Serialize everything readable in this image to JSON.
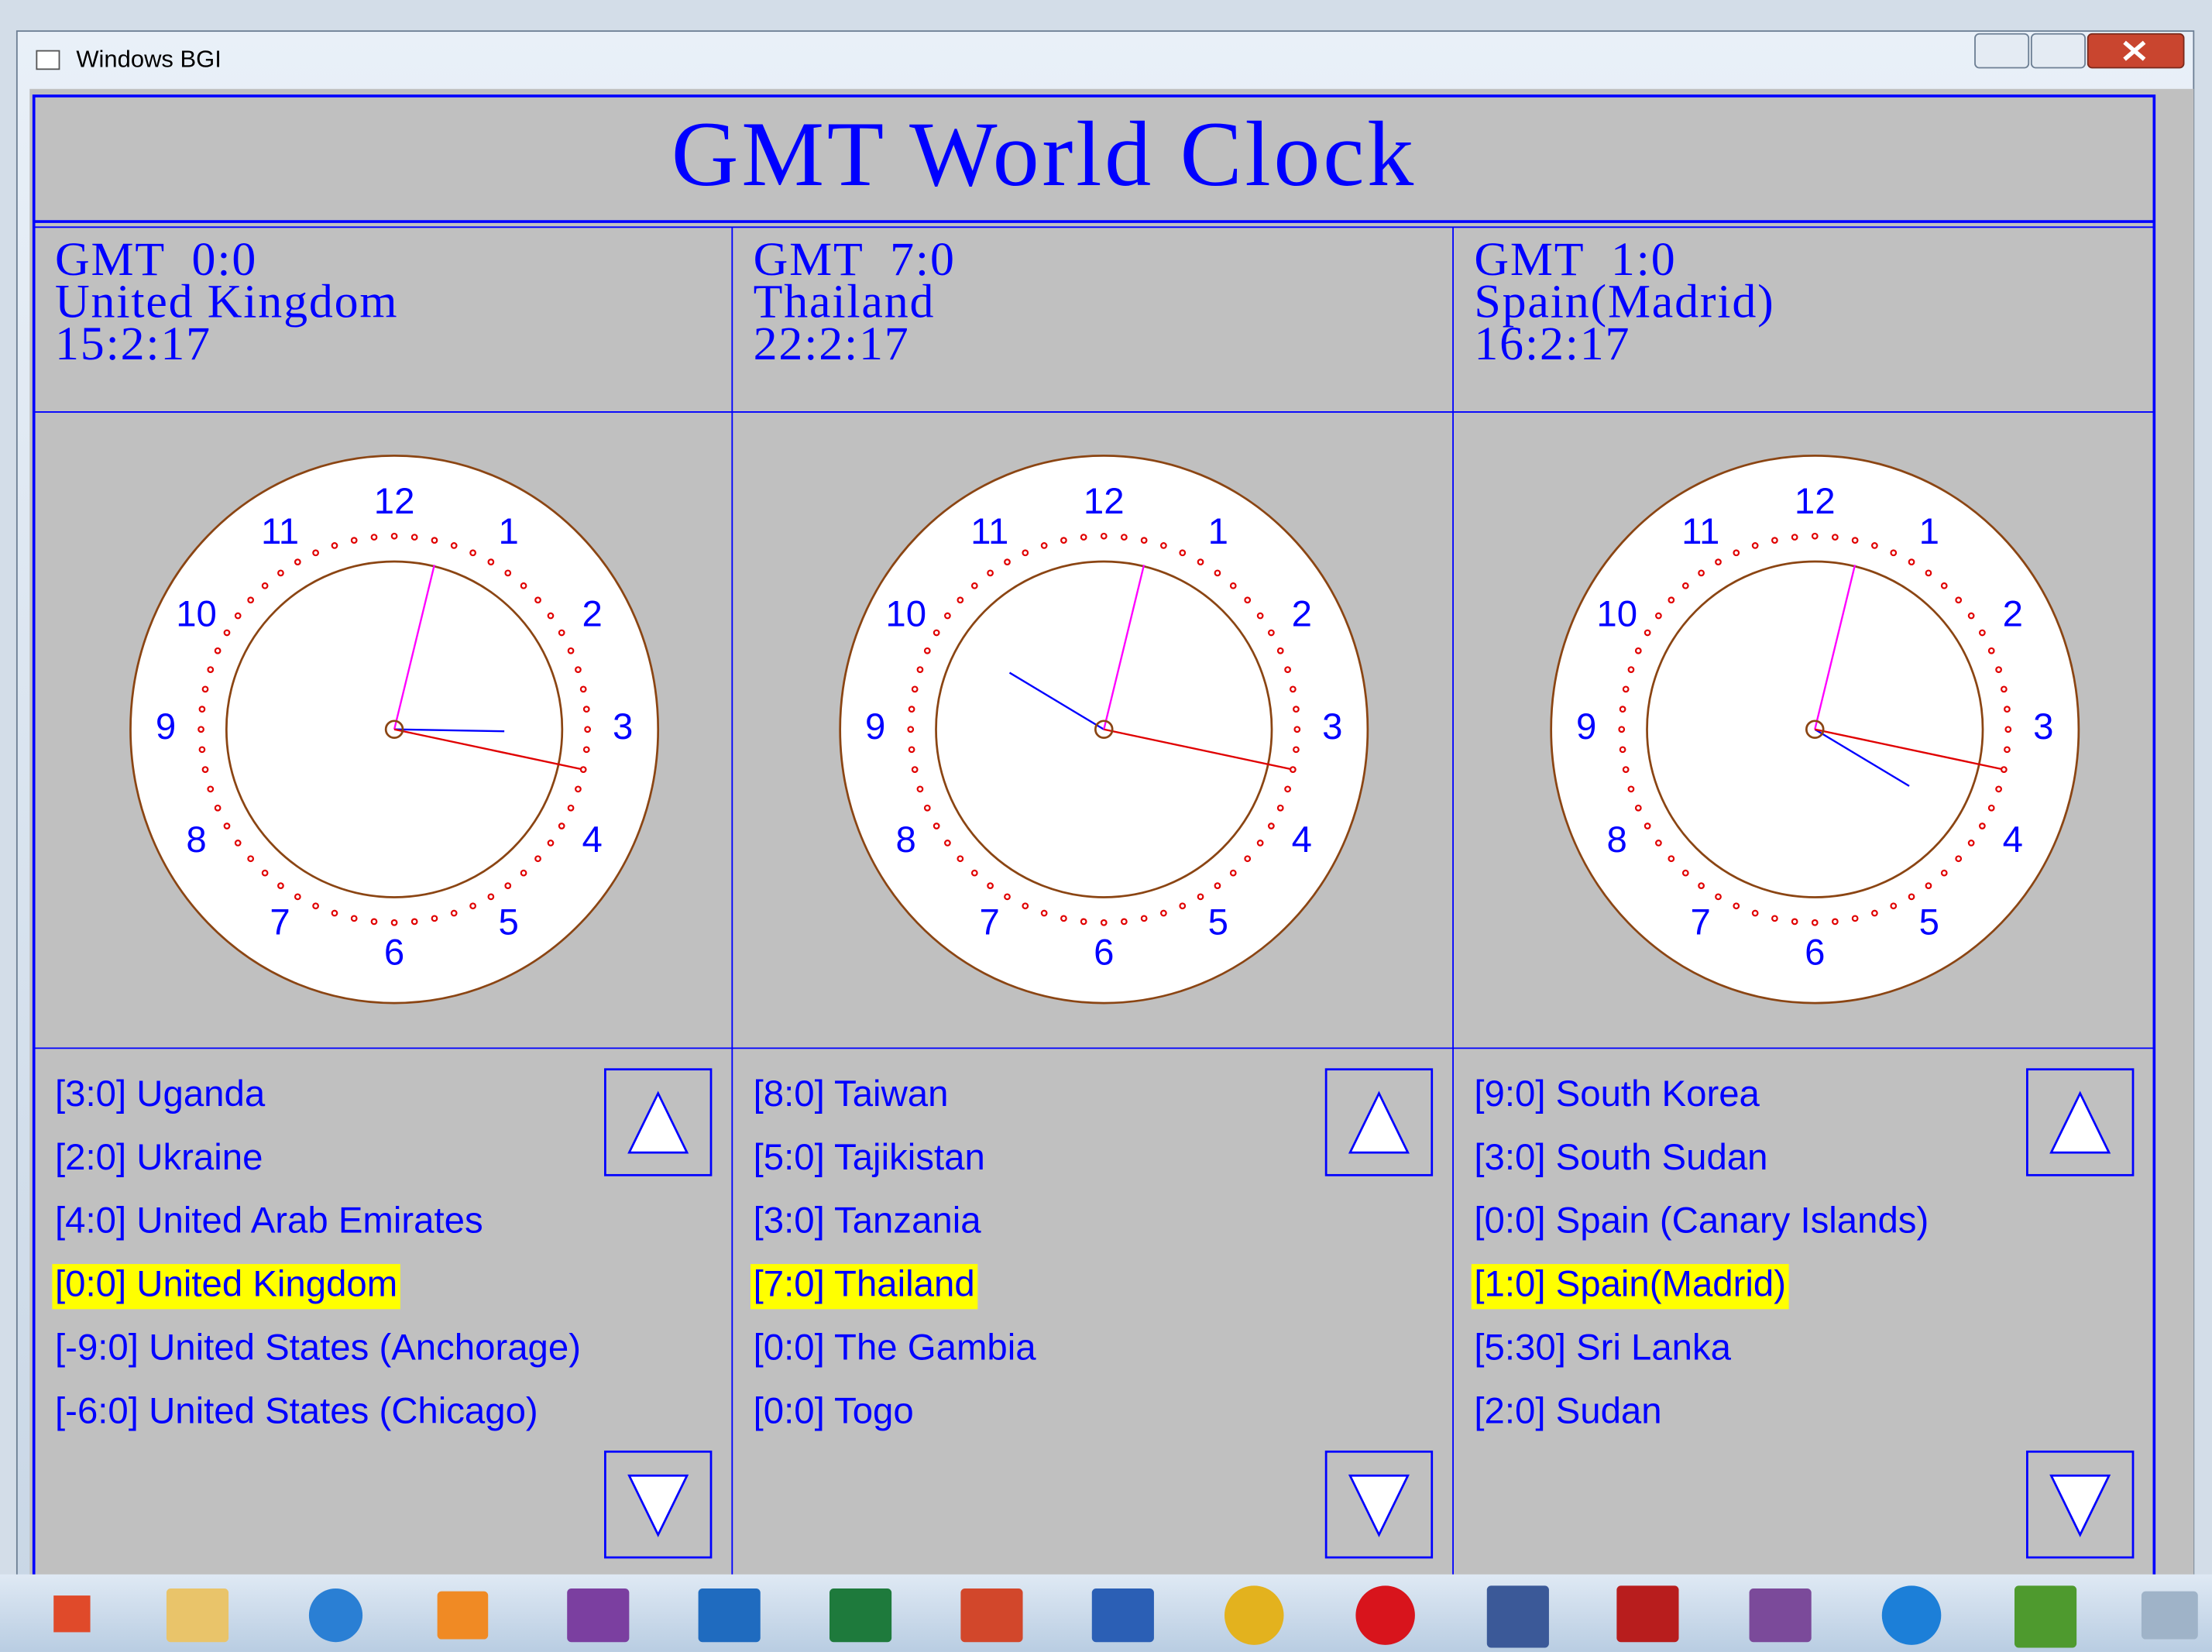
{
  "window": {
    "title": "Windows BGI"
  },
  "app": {
    "title": "GMT World Clock"
  },
  "clock_dial": [
    12,
    1,
    2,
    3,
    4,
    5,
    6,
    7,
    8,
    9,
    10,
    11
  ],
  "panels": [
    {
      "gmt": "GMT  0:0",
      "country": "United Kingdom",
      "time": "15:2:17",
      "selected": 3,
      "list": [
        "[3:0] Uganda",
        "[2:0] Ukraine",
        "[4:0] United Arab Emirates",
        "[0:0] United Kingdom",
        "[-9:0] United States (Anchorage)",
        "[-6:0] United States (Chicago)"
      ]
    },
    {
      "gmt": "GMT  7:0",
      "country": "Thailand",
      "time": "22:2:17",
      "selected": 3,
      "list": [
        "[8:0] Taiwan",
        "[5:0] Tajikistan",
        "[3:0] Tanzania",
        "[7:0] Thailand",
        "[0:0] The Gambia",
        "[0:0] Togo"
      ]
    },
    {
      "gmt": "GMT  1:0",
      "country": "Spain(Madrid)",
      "time": "16:2:17",
      "selected": 3,
      "list": [
        "[9:0] South Korea",
        "[3:0] South Sudan",
        "[0:0] Spain (Canary Islands)",
        "[1:0] Spain(Madrid)",
        "[5:30] Sri Lanka",
        "[2:0] Sudan"
      ]
    }
  ]
}
